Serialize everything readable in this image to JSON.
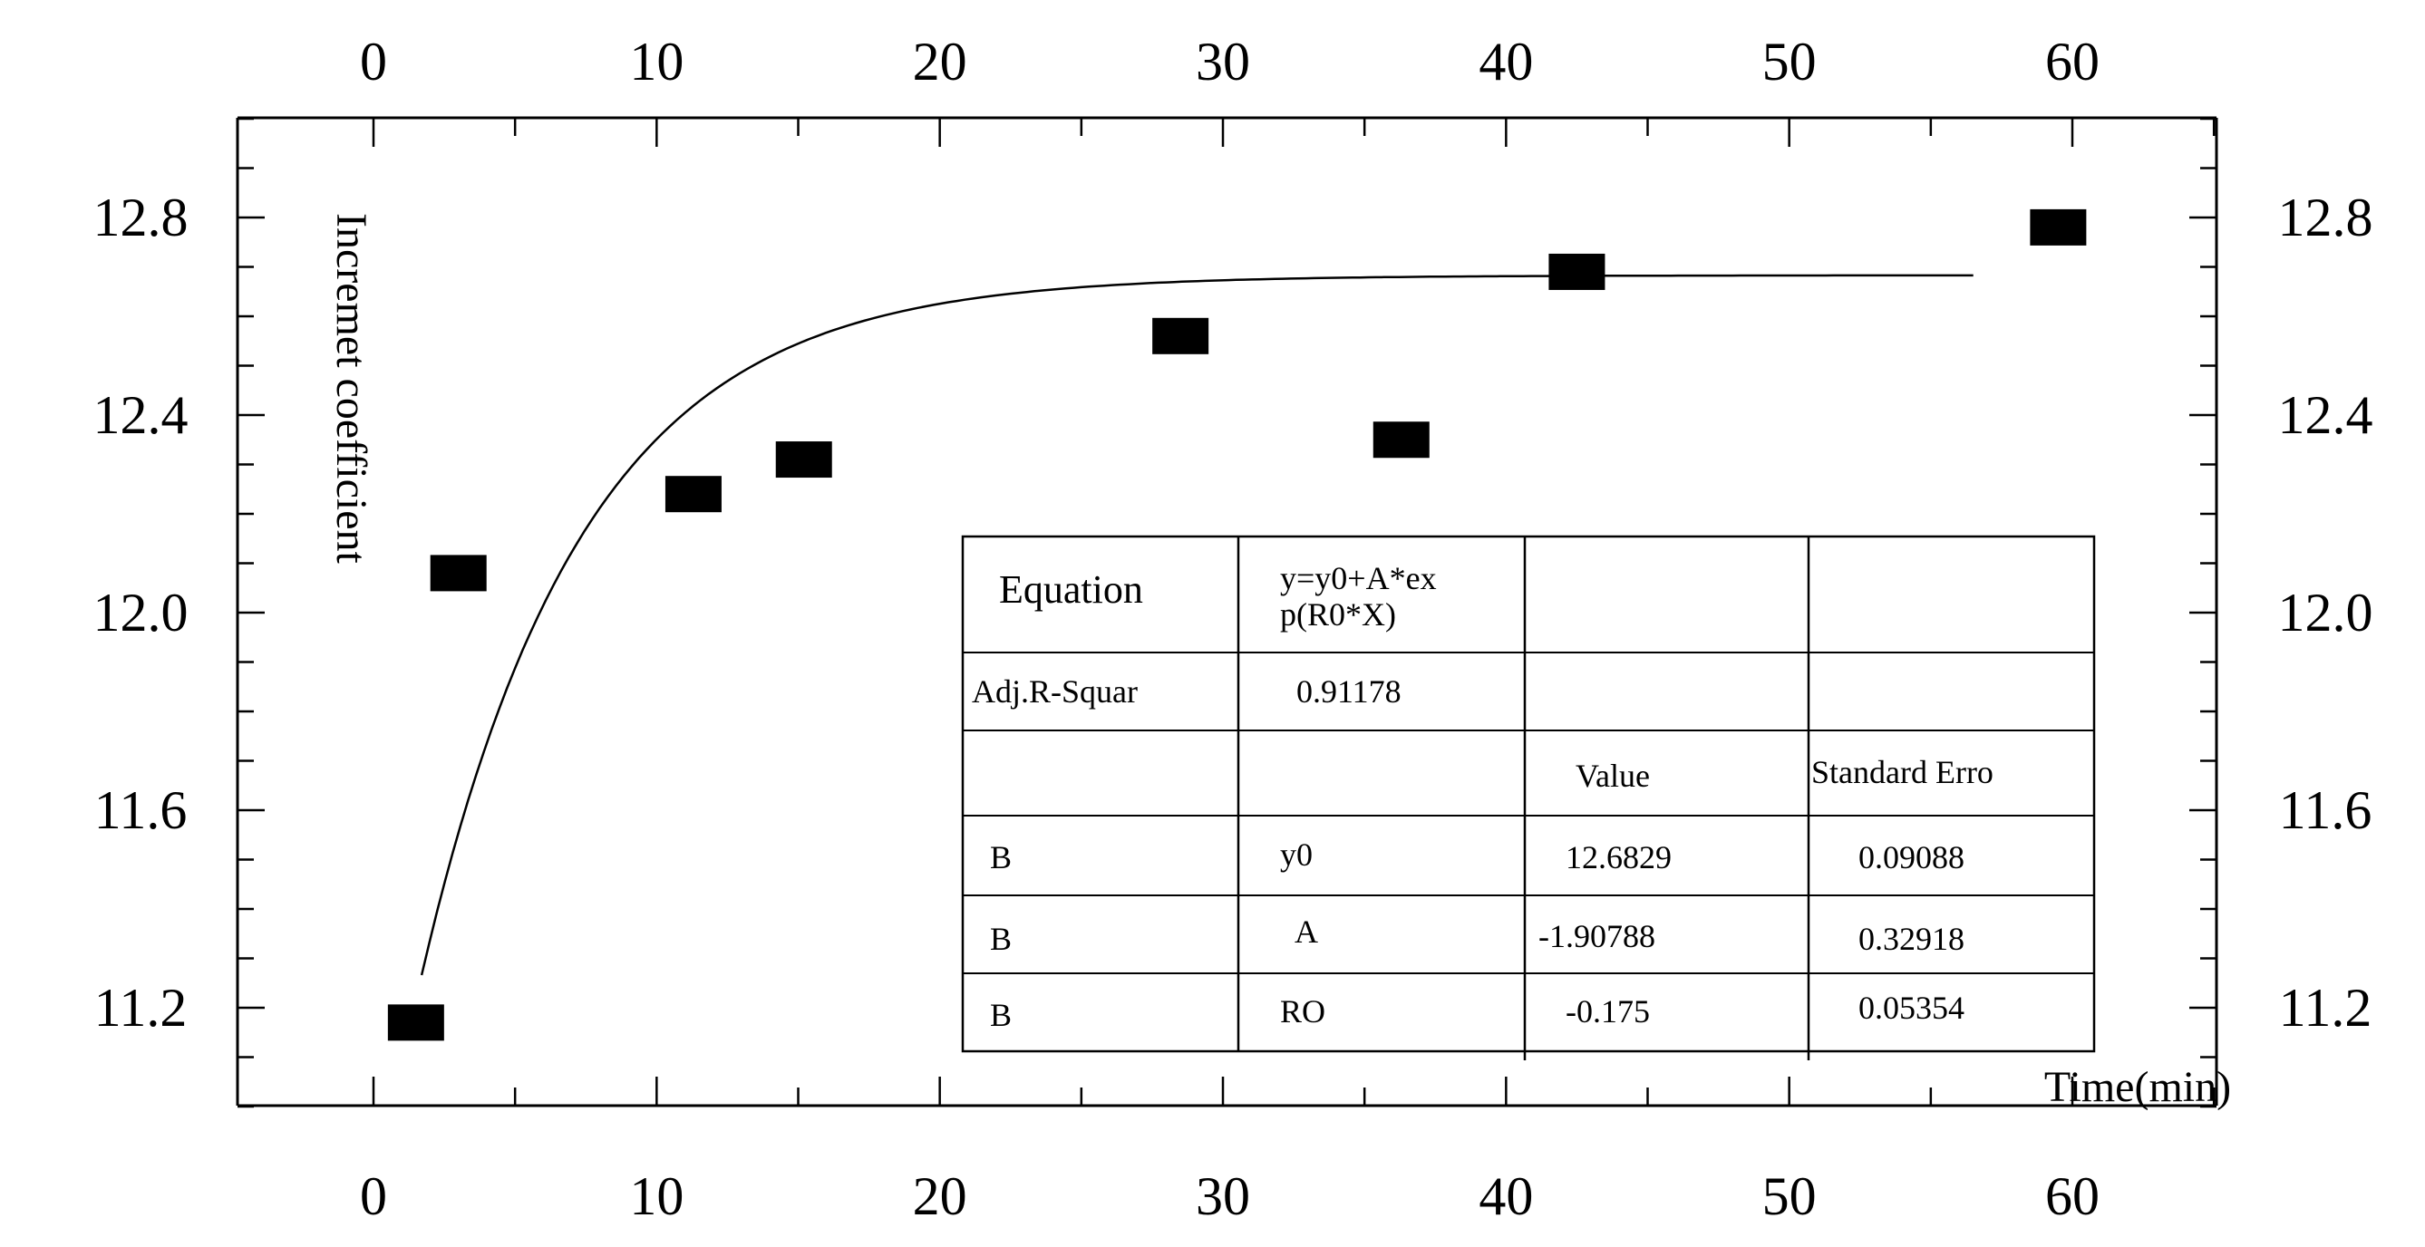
{
  "chart_data": {
    "type": "scatter",
    "title": "",
    "xlabel": "Time(min)",
    "ylabel": "Incremet coefficient",
    "xlim": [
      -5,
      65
    ],
    "ylim": [
      11.0,
      13.0
    ],
    "x_ticks": [
      "0",
      "10",
      "20",
      "30",
      "40",
      "50",
      "60"
    ],
    "y_ticks": [
      "11.2",
      "11.6",
      "12.0",
      "12.4",
      "12.8"
    ],
    "grid": false,
    "series": [
      {
        "marker": "square",
        "x": [
          1.5,
          3,
          11.3,
          15.2,
          28.5,
          36.3,
          42.5,
          59.5
        ],
        "y": [
          11.17,
          12.08,
          12.24,
          12.31,
          12.56,
          12.35,
          12.69,
          12.78
        ]
      }
    ],
    "fit_curve": {
      "equation": "y=y0+A*exp(R0*X)",
      "y0": 12.6829,
      "A": -1.90788,
      "R0": -0.175,
      "x_range": [
        1.7,
        56.5
      ]
    },
    "fit_table": {
      "rows": [
        [
          "Equation",
          "y=y0+A*ex",
          "",
          ""
        ],
        [
          "",
          "p(R0*X)",
          "",
          ""
        ],
        [
          "Adj.R-Squar",
          "0.91178",
          "",
          ""
        ],
        [
          "",
          "",
          "Value",
          "Standard Erro"
        ],
        [
          "B",
          "y0",
          "12.6829",
          "0.09088"
        ],
        [
          "B",
          "A",
          "-1.90788",
          "0.32918"
        ],
        [
          "B",
          "RO",
          "-0.175",
          "0.05354"
        ]
      ]
    }
  }
}
